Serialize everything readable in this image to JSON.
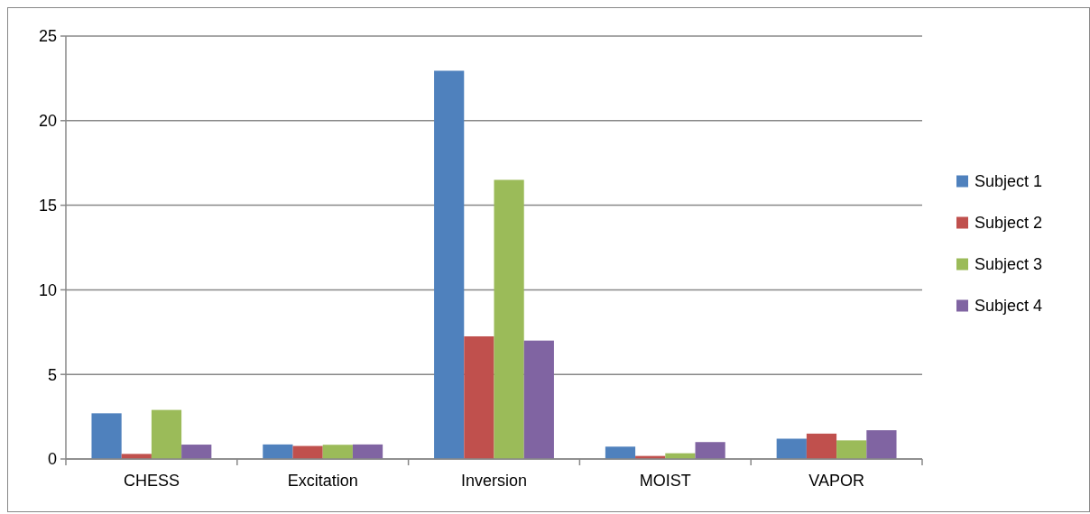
{
  "chart_data": {
    "type": "bar",
    "categories": [
      "CHESS",
      "Excitation",
      "Inversion",
      "MOIST",
      "VAPOR"
    ],
    "series": [
      {
        "name": "Subject 1",
        "color": "#4f81bd",
        "values": [
          2.7,
          0.86,
          22.95,
          0.73,
          1.2
        ]
      },
      {
        "name": "Subject 2",
        "color": "#c0504d",
        "values": [
          0.3,
          0.77,
          7.25,
          0.18,
          1.5
        ]
      },
      {
        "name": "Subject 3",
        "color": "#9bbb59",
        "values": [
          2.9,
          0.84,
          16.5,
          0.34,
          1.1
        ]
      },
      {
        "name": "Subject 4",
        "color": "#8064a2",
        "values": [
          0.85,
          0.86,
          7.0,
          1.0,
          1.7
        ]
      }
    ],
    "ylim": [
      0,
      25
    ],
    "yticks": [
      0,
      5,
      10,
      15,
      20,
      25
    ],
    "grid": "y",
    "legend": "right"
  }
}
